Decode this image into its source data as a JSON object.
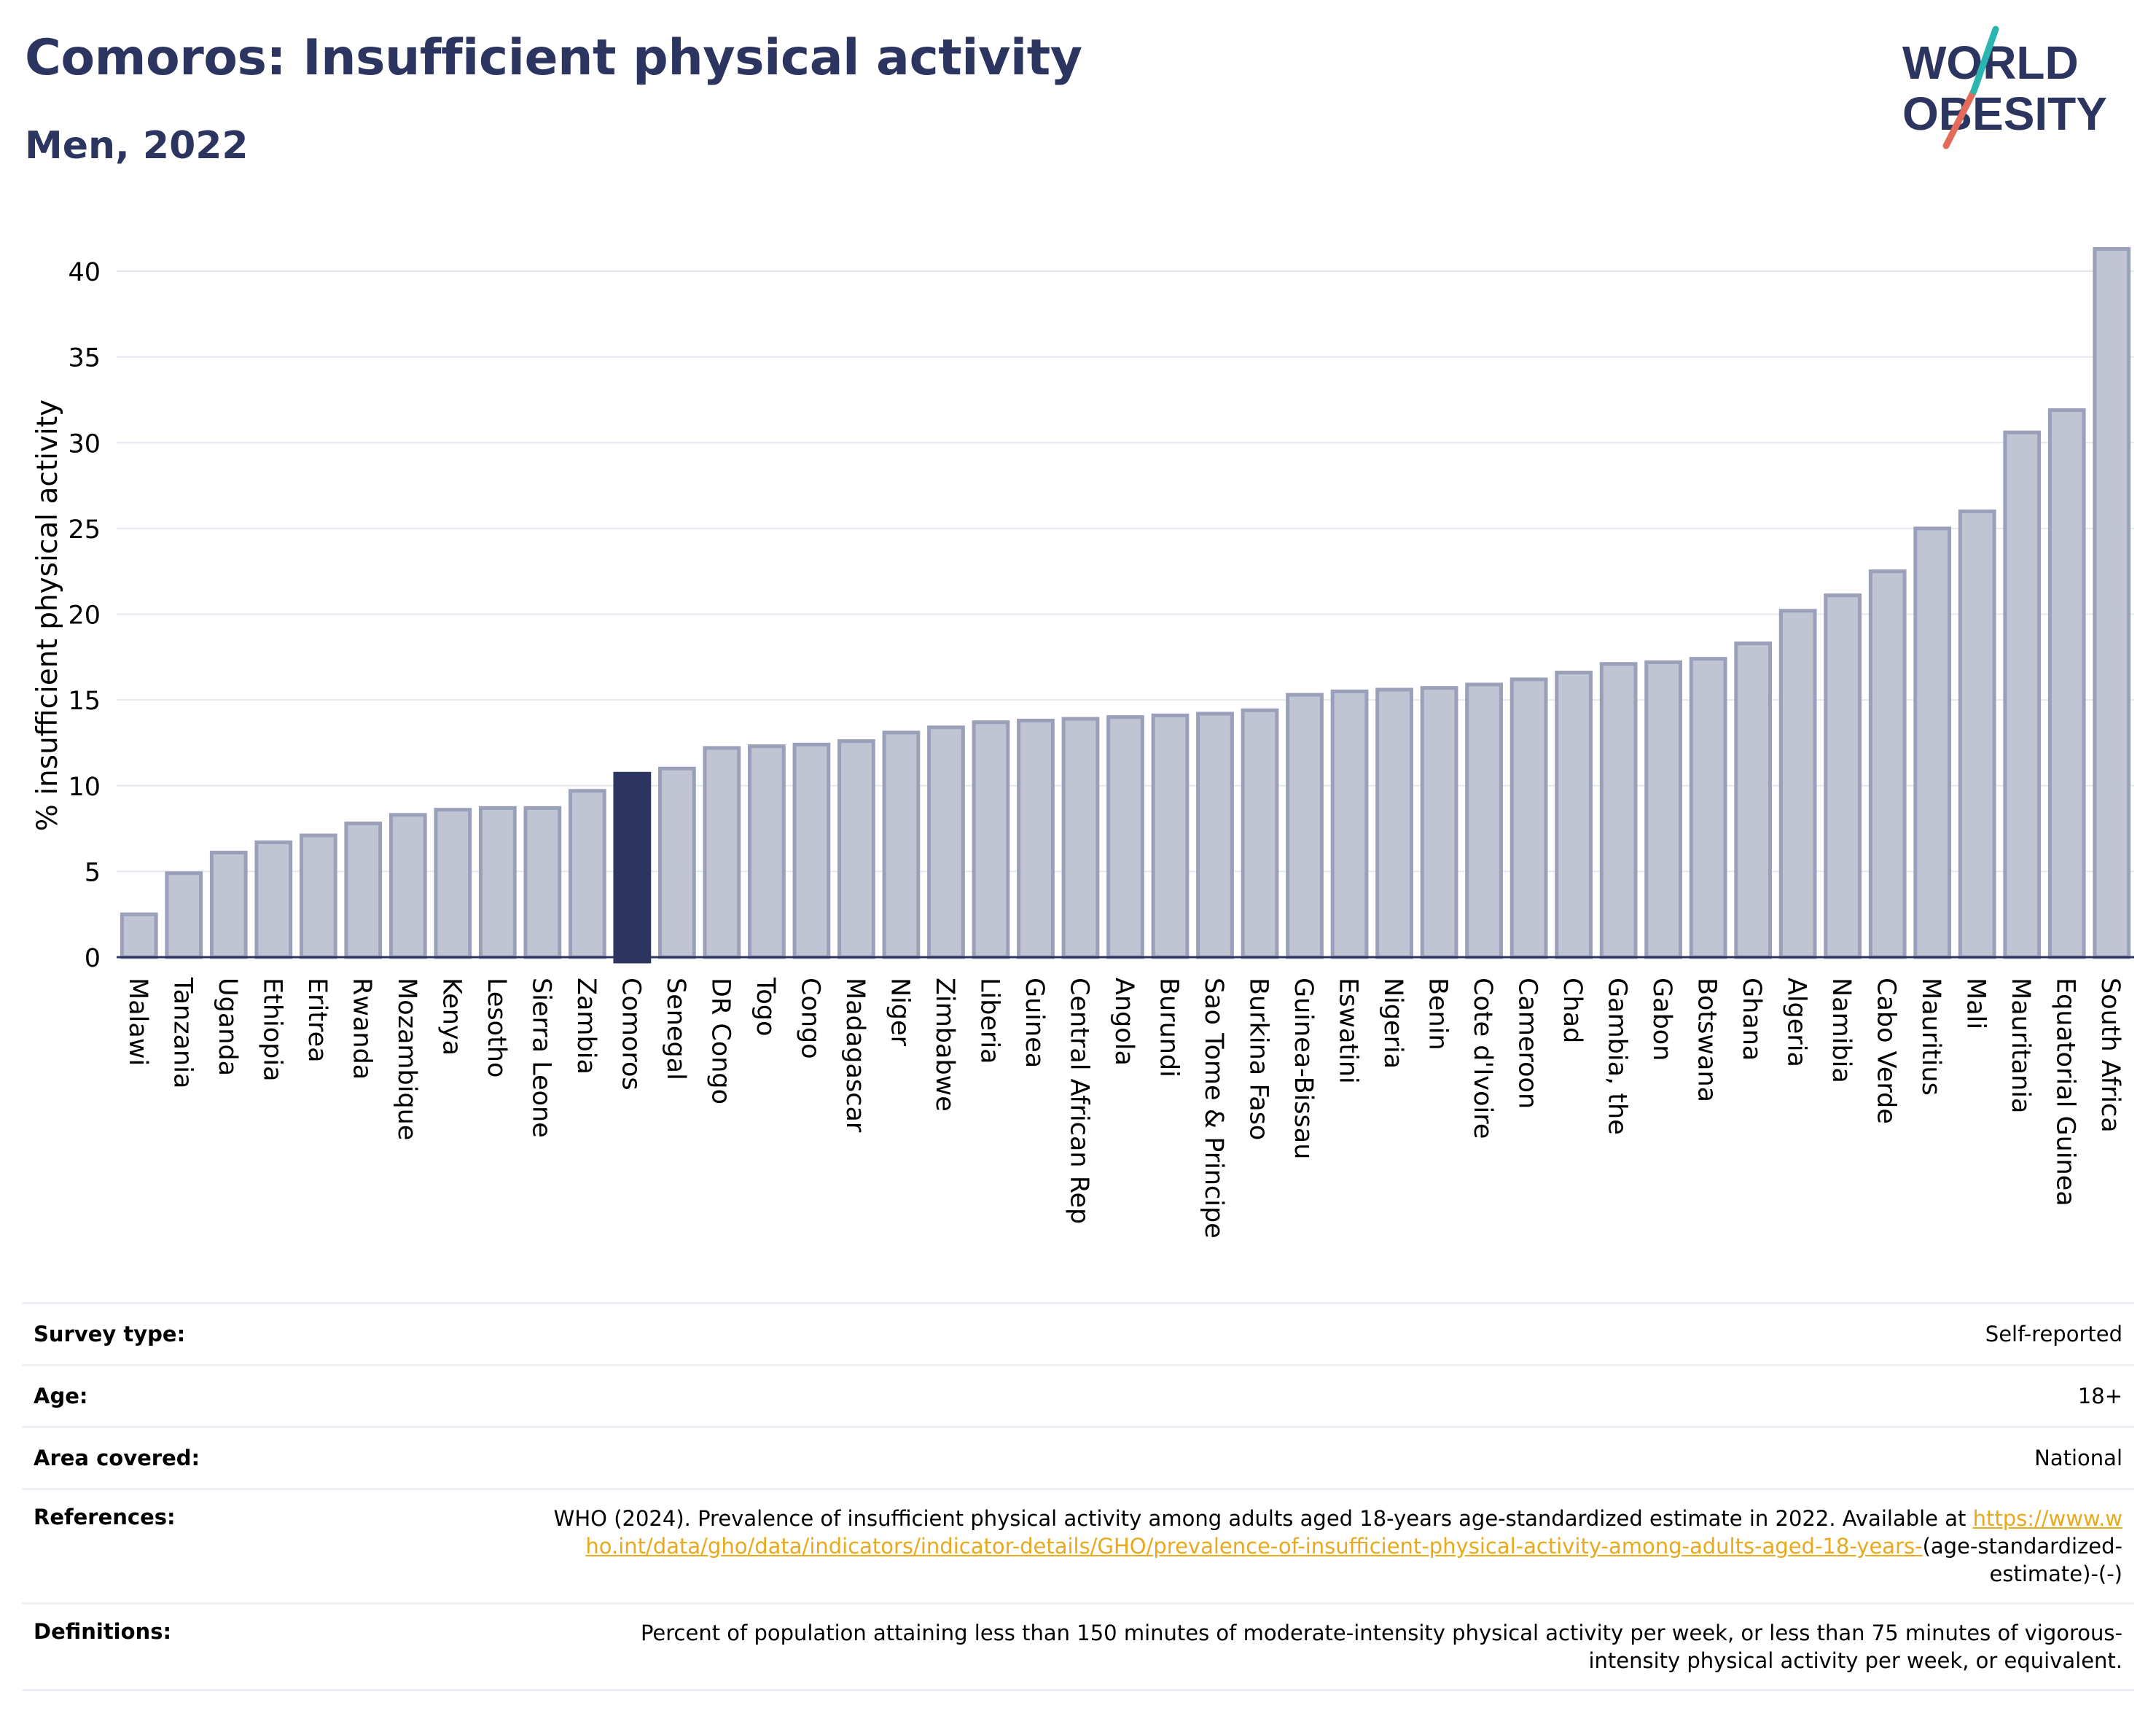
{
  "header": {
    "title": "Comoros: Insufficient physical activity",
    "subtitle": "Men, 2022"
  },
  "logo": {
    "line1": "WORLD",
    "line2": "OBESITY"
  },
  "colors": {
    "bar": "#c0c4d3",
    "bar_border": "#9aa0b9",
    "highlight": "#2c3560",
    "text_dark": "#2c3560",
    "link": "#e8a91c"
  },
  "chart_data": {
    "type": "bar",
    "ylabel": "% insufficient physical activity",
    "ylim": [
      0,
      42
    ],
    "yticks": [
      0,
      5,
      10,
      15,
      20,
      25,
      30,
      35,
      40
    ],
    "grid": true,
    "highlight": "Comoros",
    "categories": [
      "Malawi",
      "Tanzania",
      "Uganda",
      "Ethiopia",
      "Eritrea",
      "Rwanda",
      "Mozambique",
      "Kenya",
      "Lesotho",
      "Sierra Leone",
      "Zambia",
      "Comoros",
      "Senegal",
      "DR Congo",
      "Togo",
      "Congo",
      "Madagascar",
      "Niger",
      "Zimbabwe",
      "Liberia",
      "Guinea",
      "Central African Rep",
      "Angola",
      "Burundi",
      "Sao Tome & Principe",
      "Burkina Faso",
      "Guinea-Bissau",
      "Eswatini",
      "Nigeria",
      "Benin",
      "Cote d'Ivoire",
      "Cameroon",
      "Chad",
      "Gambia, the",
      "Gabon",
      "Botswana",
      "Ghana",
      "Algeria",
      "Namibia",
      "Cabo Verde",
      "Mauritius",
      "Mali",
      "Mauritania",
      "Equatorial Guinea",
      "South Africa"
    ],
    "values": [
      2.5,
      4.9,
      6.1,
      6.7,
      7.1,
      7.8,
      8.3,
      8.6,
      8.7,
      8.7,
      9.7,
      10.7,
      11.0,
      12.2,
      12.3,
      12.4,
      12.6,
      13.1,
      13.4,
      13.7,
      13.8,
      13.9,
      14.0,
      14.1,
      14.2,
      14.4,
      15.3,
      15.5,
      15.6,
      15.7,
      15.9,
      16.2,
      16.6,
      17.1,
      17.2,
      17.4,
      18.3,
      20.2,
      21.1,
      22.5,
      25.0,
      26.0,
      30.6,
      31.9,
      41.3
    ]
  },
  "info": [
    {
      "label": "Survey type:",
      "value": "Self-reported"
    },
    {
      "label": "Age:",
      "value": "18+"
    },
    {
      "label": "Area covered:",
      "value": "National"
    },
    {
      "label": "References:",
      "value_before": "WHO (2024). Prevalence of insufficient physical activity among adults aged 18-years age-standardized estimate in 2022. Available at",
      "link": "https://www.who.int/data/gho/data/indicators/indicator-details/GHO/prevalence-of-insufficient-physical-activity-among-adults-aged-18-years-",
      "value_after": "(age-standardized-estimate)-(-)"
    },
    {
      "label": "Definitions:",
      "value": "Percent of population attaining less than 150 minutes of moderate-intensity physical activity per week, or less than 75 minutes of vigorous-intensity physical activity per week, or equivalent."
    }
  ]
}
